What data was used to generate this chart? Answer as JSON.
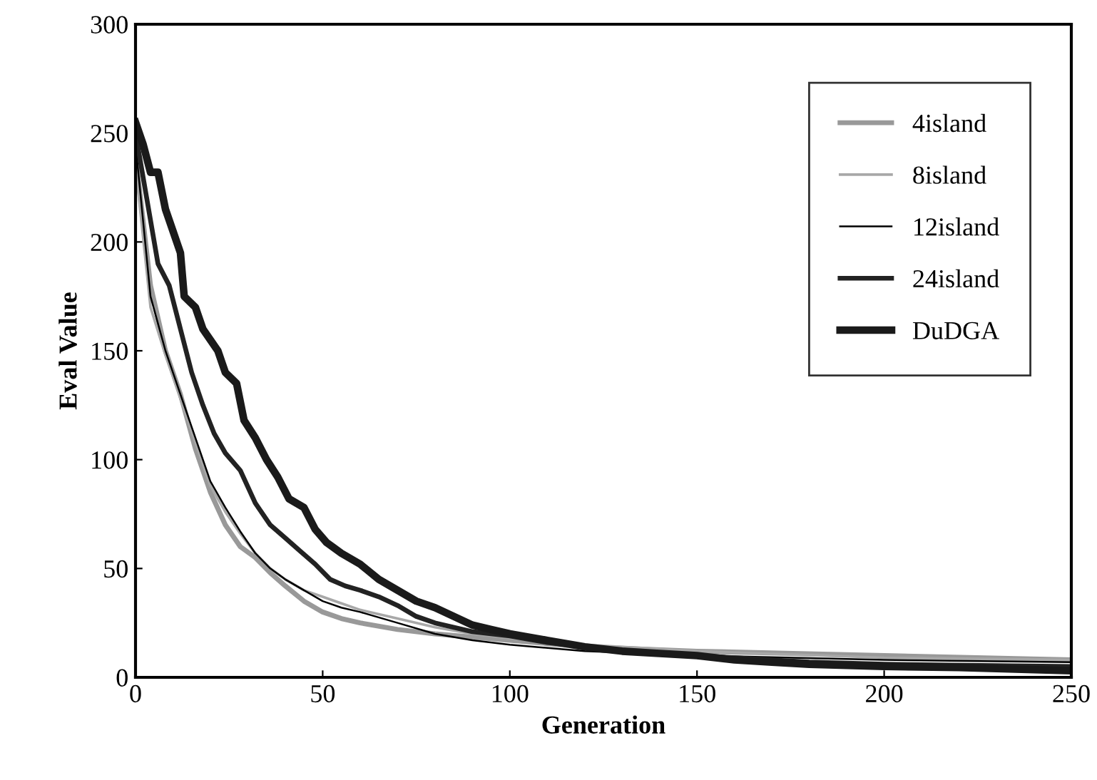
{
  "chart_data": {
    "type": "line",
    "xlabel": "Generation",
    "ylabel": "Eval Value",
    "xlim": [
      0,
      250
    ],
    "ylim": [
      0,
      300
    ],
    "xticks": [
      0,
      50,
      100,
      150,
      200,
      250
    ],
    "yticks": [
      0,
      50,
      100,
      150,
      200,
      250,
      300
    ],
    "grid": false,
    "legend": "top right",
    "marker": "none",
    "line_style": "solid",
    "series": [
      {
        "name": "4island",
        "color": "#999999",
        "x": [
          0,
          4,
          8,
          12,
          16,
          20,
          24,
          28,
          32,
          36,
          40,
          45,
          50,
          55,
          60,
          70,
          80,
          100,
          120,
          150,
          200,
          250
        ],
        "values": [
          240,
          180,
          150,
          130,
          105,
          85,
          70,
          60,
          55,
          48,
          42,
          35,
          30,
          27,
          25,
          22,
          20,
          17,
          14,
          12,
          10,
          8
        ]
      },
      {
        "name": "8island",
        "color": "#a8a8a8",
        "x": [
          0,
          4,
          8,
          12,
          16,
          20,
          24,
          28,
          32,
          36,
          40,
          45,
          50,
          55,
          60,
          70,
          80,
          90,
          100,
          120,
          150,
          200,
          250
        ],
        "values": [
          235,
          170,
          148,
          128,
          108,
          88,
          76,
          66,
          57,
          50,
          45,
          40,
          37,
          34,
          31,
          27,
          23,
          20,
          18,
          15,
          12,
          9,
          8
        ]
      },
      {
        "name": "12island",
        "color": "#000000",
        "x": [
          0,
          4,
          8,
          12,
          16,
          20,
          24,
          28,
          32,
          36,
          40,
          45,
          50,
          55,
          60,
          70,
          80,
          90,
          100,
          120,
          150,
          200,
          250
        ],
        "values": [
          245,
          175,
          150,
          130,
          110,
          90,
          78,
          67,
          57,
          50,
          45,
          40,
          35,
          32,
          30,
          25,
          20,
          17,
          15,
          12,
          10,
          8,
          7
        ]
      },
      {
        "name": "24island",
        "color": "#222222",
        "x": [
          0,
          3,
          6,
          9,
          12,
          15,
          18,
          21,
          24,
          28,
          32,
          36,
          40,
          44,
          48,
          52,
          56,
          60,
          65,
          70,
          75,
          80,
          90,
          100,
          110,
          120,
          140,
          160,
          180,
          200,
          250
        ],
        "values": [
          250,
          220,
          190,
          180,
          160,
          140,
          125,
          112,
          103,
          95,
          80,
          70,
          64,
          58,
          52,
          45,
          42,
          40,
          37,
          33,
          28,
          25,
          21,
          19,
          16,
          14,
          11,
          9,
          7,
          6,
          5
        ]
      },
      {
        "name": "DuDGA",
        "color": "#1a1a1a",
        "x": [
          0,
          2,
          4,
          6,
          8,
          10,
          12,
          13,
          16,
          18,
          20,
          22,
          24,
          27,
          29,
          32,
          35,
          38,
          41,
          45,
          48,
          51,
          55,
          60,
          65,
          70,
          75,
          80,
          85,
          90,
          95,
          100,
          110,
          120,
          130,
          140,
          150,
          160,
          170,
          180,
          200,
          220,
          250
        ],
        "values": [
          255,
          245,
          232,
          232,
          215,
          205,
          195,
          175,
          170,
          160,
          155,
          150,
          140,
          135,
          118,
          110,
          100,
          92,
          82,
          78,
          68,
          62,
          57,
          52,
          45,
          40,
          35,
          32,
          28,
          24,
          22,
          20,
          17,
          14,
          12,
          11,
          10,
          8,
          7,
          6,
          5,
          4.5,
          3
        ]
      }
    ]
  }
}
